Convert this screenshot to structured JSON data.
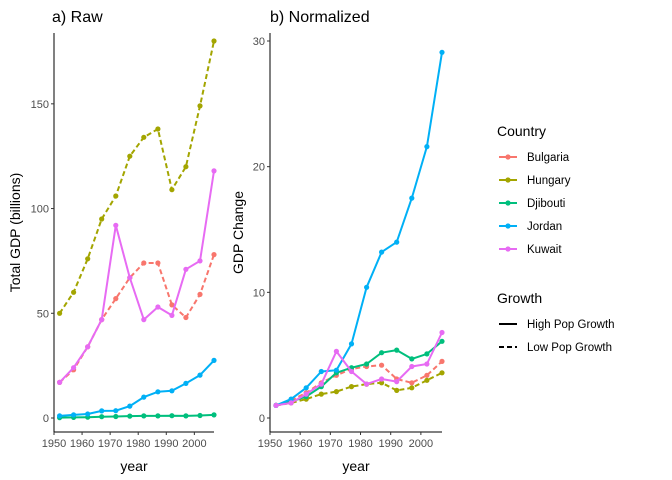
{
  "chart_data": [
    {
      "type": "line",
      "title": "a) Raw",
      "xlabel": "year",
      "ylabel": "Total GDP (billions)",
      "xlim": [
        1950,
        2007
      ],
      "ylim": [
        0,
        180
      ],
      "xticks": [
        1950,
        1960,
        1970,
        1980,
        1990,
        2000
      ],
      "yticks": [
        0,
        50,
        100,
        150
      ],
      "x": [
        1952,
        1957,
        1962,
        1967,
        1972,
        1977,
        1982,
        1987,
        1992,
        1997,
        2002,
        2007
      ],
      "series": [
        {
          "name": "Bulgaria",
          "color": "#F8766D",
          "growth": "Low Pop Growth",
          "values": [
            17,
            23,
            34,
            47,
            57,
            67,
            74,
            74,
            54,
            48,
            59,
            78
          ]
        },
        {
          "name": "Hungary",
          "color": "#A3A500",
          "growth": "Low Pop Growth",
          "values": [
            50,
            60,
            76,
            95,
            106,
            125,
            134,
            138,
            109,
            120,
            149,
            180
          ]
        },
        {
          "name": "Djibouti",
          "color": "#00BF7D",
          "growth": "High Pop Growth",
          "values": [
            0.2,
            0.3,
            0.4,
            0.6,
            0.7,
            0.9,
            1.0,
            1.0,
            1.1,
            1.0,
            1.2,
            1.5
          ]
        },
        {
          "name": "Jordan",
          "color": "#00B0F6",
          "growth": "High Pop Growth",
          "values": [
            1.0,
            1.5,
            1.9,
            3.4,
            3.5,
            5.7,
            10,
            12.5,
            13,
            16.5,
            20.5,
            27.5
          ]
        },
        {
          "name": "Kuwait",
          "color": "#E76BF3",
          "growth": "High Pop Growth",
          "values": [
            17,
            24,
            34,
            47,
            92,
            67,
            47,
            53,
            49,
            71,
            75,
            118
          ]
        }
      ]
    },
    {
      "type": "line",
      "title": "b) Normalized",
      "xlabel": "year",
      "ylabel": "GDP Change",
      "xlim": [
        1950,
        2007
      ],
      "ylim": [
        0,
        30
      ],
      "xticks": [
        1950,
        1960,
        1970,
        1980,
        1990,
        2000
      ],
      "yticks": [
        0,
        10,
        20,
        30
      ],
      "x": [
        1952,
        1957,
        1962,
        1967,
        1972,
        1977,
        1982,
        1987,
        1992,
        1997,
        2002,
        2007
      ],
      "series": [
        {
          "name": "Bulgaria",
          "color": "#F8766D",
          "growth": "Low Pop Growth",
          "values": [
            1,
            1.4,
            2.0,
            2.8,
            3.4,
            3.9,
            4.1,
            4.2,
            3.1,
            2.8,
            3.4,
            4.5
          ]
        },
        {
          "name": "Hungary",
          "color": "#A3A500",
          "growth": "Low Pop Growth",
          "values": [
            1,
            1.2,
            1.5,
            1.9,
            2.1,
            2.5,
            2.7,
            2.8,
            2.2,
            2.4,
            3.0,
            3.6
          ]
        },
        {
          "name": "Djibouti",
          "color": "#00BF7D",
          "growth": "High Pop Growth",
          "values": [
            1,
            1.3,
            1.7,
            2.5,
            3.6,
            4.0,
            4.3,
            5.2,
            5.4,
            4.7,
            5.1,
            6.1
          ]
        },
        {
          "name": "Jordan",
          "color": "#00B0F6",
          "growth": "High Pop Growth",
          "values": [
            1,
            1.5,
            2.4,
            3.7,
            3.8,
            5.9,
            10.4,
            13.2,
            14.0,
            17.5,
            21.6,
            29.1
          ]
        },
        {
          "name": "Kuwait",
          "color": "#E76BF3",
          "growth": "High Pop Growth",
          "values": [
            1,
            1.2,
            1.9,
            2.7,
            5.3,
            3.7,
            2.7,
            3.1,
            2.9,
            4.1,
            4.3,
            6.8
          ]
        }
      ]
    }
  ],
  "legend": {
    "country_title": "Country",
    "countries": [
      {
        "name": "Bulgaria",
        "color": "#F8766D"
      },
      {
        "name": "Hungary",
        "color": "#A3A500"
      },
      {
        "name": "Djibouti",
        "color": "#00BF7D"
      },
      {
        "name": "Jordan",
        "color": "#00B0F6"
      },
      {
        "name": "Kuwait",
        "color": "#E76BF3"
      }
    ],
    "growth_title": "Growth",
    "growth_types": [
      {
        "name": "High Pop Growth",
        "linetype": "solid"
      },
      {
        "name": "Low Pop Growth",
        "linetype": "dashed"
      }
    ]
  }
}
